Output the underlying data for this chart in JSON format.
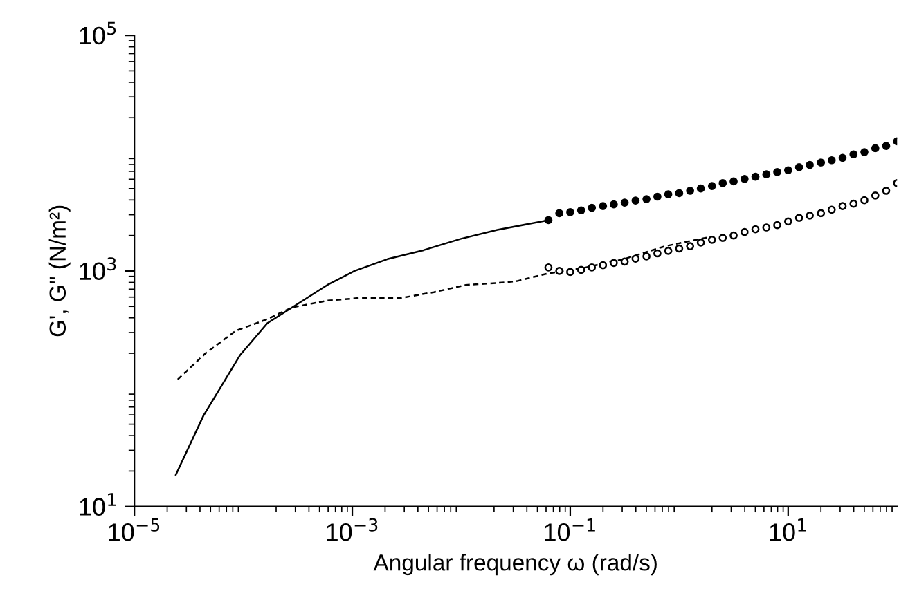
{
  "chart_data": {
    "type": "line",
    "xlabel": "Angular frequency ω (rad/s)",
    "ylabel": "G', G\" (N/m²)",
    "log": "xy",
    "grid": false,
    "xlim": [
      1e-05,
      100
    ],
    "ylim": [
      10,
      100000
    ],
    "xticks": [
      {
        "value": 1e-05,
        "label": "10$^{−5}$"
      },
      {
        "value": 0.001,
        "label": "10$^{−3}$"
      },
      {
        "value": 0.1,
        "label": "10$^{−1}$"
      },
      {
        "value": 10,
        "label": "10$^{1}$"
      }
    ],
    "yticks": [
      {
        "value": 10,
        "label": "10$^{1}$"
      },
      {
        "value": 1000,
        "label": "10$^{3}$"
      },
      {
        "value": 100000,
        "label": "10$^{5}$"
      }
    ],
    "series": [
      {
        "line_style": "solid",
        "marker": "none",
        "color": "#000000",
        "x": [
          2.4e-05,
          4.3e-05,
          9.3e-05,
          0.000166,
          0.00028,
          0.00059,
          0.00105,
          0.0021,
          0.0045,
          0.0098,
          0.0214,
          0.0631
        ],
        "values": [
          18.6,
          59,
          192,
          360,
          490,
          760,
          1000,
          1260,
          1500,
          1870,
          2230,
          2700
        ]
      },
      {
        "line_style": "dashed",
        "marker": "none",
        "color": "#000000",
        "x": [
          2.5e-05,
          4.5e-05,
          8.5e-05,
          0.000166,
          0.00028,
          0.00059,
          0.00117,
          0.0028,
          0.0056,
          0.011,
          0.0214,
          0.0324,
          0.0617,
          0.126,
          0.31,
          0.74,
          1.95
        ],
        "values": [
          120,
          200,
          310,
          390,
          490,
          560,
          590,
          590,
          660,
          760,
          790,
          820,
          950,
          1050,
          1260,
          1620,
          1950
        ]
      },
      {
        "type": "scatter",
        "marker": "circle",
        "color": "#000000",
        "x": [
          0.0631,
          0.0794,
          0.1,
          0.126,
          0.158,
          0.2,
          0.251,
          0.316,
          0.398,
          0.501,
          0.631,
          0.794,
          1,
          1.26,
          1.58,
          2,
          2.51,
          3.16,
          3.98,
          5.01,
          6.31,
          7.94,
          10,
          12.6,
          15.8,
          20,
          25.1,
          31.6,
          39.8,
          50.1,
          63.1,
          79.4,
          100
        ],
        "values": [
          2700,
          3090,
          3160,
          3270,
          3430,
          3550,
          3670,
          3800,
          3960,
          4070,
          4270,
          4470,
          4570,
          4790,
          5010,
          5250,
          5560,
          5750,
          6030,
          6310,
          6610,
          6920,
          7160,
          7590,
          7940,
          8320,
          8710,
          9120,
          9770,
          10200,
          11000,
          11500,
          12600
        ]
      },
      {
        "type": "scatter",
        "marker": "circle",
        "color": "#000000",
        "x": [
          0.0631,
          0.0794,
          0.1,
          0.126,
          0.158,
          0.2,
          0.251,
          0.316,
          0.398,
          0.501,
          0.631,
          0.794,
          1,
          1.26,
          1.58,
          2,
          2.51,
          3.16,
          3.98,
          5.01,
          6.31,
          7.94,
          10,
          12.6,
          15.8,
          20,
          25.1,
          31.6,
          39.8,
          50.1,
          63.1,
          79.4,
          100
        ],
        "values": [
          1070,
          1000,
          980,
          1020,
          1070,
          1120,
          1170,
          1200,
          1270,
          1330,
          1410,
          1480,
          1550,
          1620,
          1740,
          1840,
          1910,
          2000,
          2140,
          2260,
          2340,
          2450,
          2630,
          2820,
          2950,
          3090,
          3310,
          3550,
          3720,
          3980,
          4370,
          4790,
          5560
        ]
      }
    ]
  }
}
